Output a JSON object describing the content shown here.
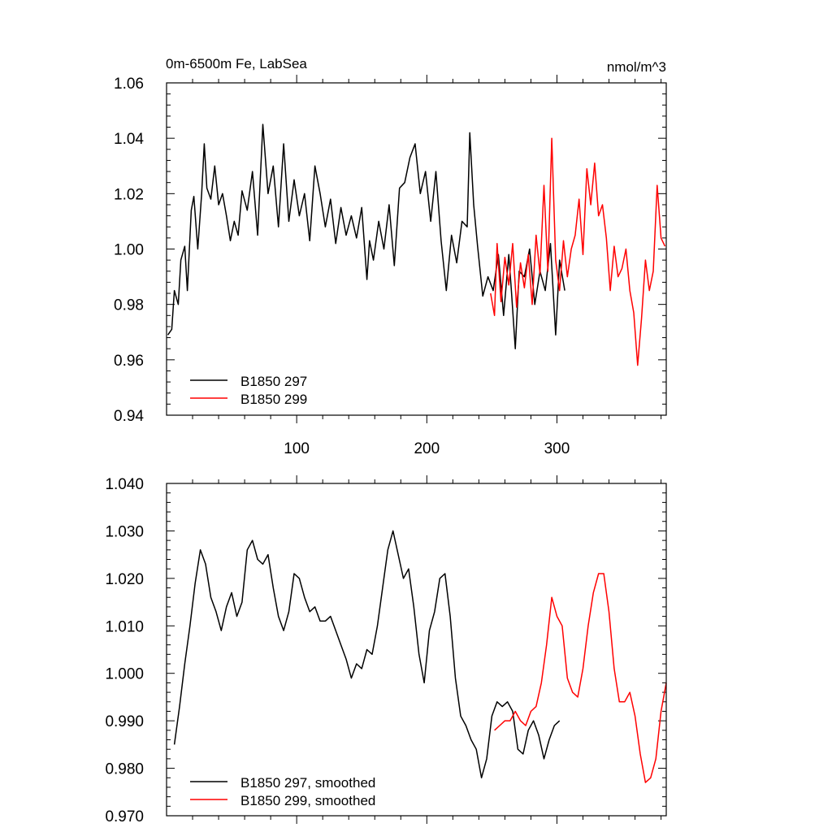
{
  "colors": {
    "series_a": "#000000",
    "series_b": "#ff0000",
    "frame": "#000000"
  },
  "chart_data": [
    {
      "type": "line",
      "title_left": "0m-6500m Fe, LabSea",
      "title_right": "nmol/m^3",
      "xlim": [
        0,
        384
      ],
      "ylim": [
        0.94,
        1.06
      ],
      "x_ticks": [
        100,
        200,
        300
      ],
      "x_tick_labels": [
        "100",
        "200",
        "300"
      ],
      "y_ticks": [
        0.94,
        0.96,
        0.98,
        1.0,
        1.02,
        1.04,
        1.06
      ],
      "y_tick_labels": [
        "0.94",
        "0.96",
        "0.98",
        "1.00",
        "1.02",
        "1.04",
        "1.06"
      ],
      "legend": [
        {
          "label": "B1850 297",
          "color": "#000000"
        },
        {
          "label": "B1850 299",
          "color": "#ff0000"
        }
      ],
      "series": [
        {
          "name": "B1850 297",
          "color": "#000000",
          "x": [
            1,
            4,
            6,
            9,
            11,
            14,
            16,
            19,
            21,
            24,
            27,
            29,
            31,
            34,
            37,
            40,
            43,
            46,
            49,
            52,
            55,
            58,
            62,
            66,
            70,
            74,
            78,
            82,
            86,
            90,
            94,
            98,
            102,
            106,
            110,
            114,
            118,
            122,
            126,
            130,
            134,
            138,
            142,
            146,
            150,
            154,
            156,
            159,
            163,
            167,
            171,
            175,
            179,
            183,
            187,
            191,
            195,
            199,
            203,
            207,
            211,
            215,
            219,
            223,
            227,
            231,
            233,
            236,
            239,
            243,
            247,
            251,
            255,
            259,
            263,
            265,
            268,
            271,
            275,
            279,
            283,
            287,
            291,
            295,
            299,
            302,
            306
          ],
          "values": [
            0.969,
            0.971,
            0.985,
            0.98,
            0.996,
            1.001,
            0.985,
            1.014,
            1.019,
            1.0,
            1.02,
            1.038,
            1.022,
            1.018,
            1.03,
            1.016,
            1.02,
            1.012,
            1.003,
            1.01,
            1.005,
            1.021,
            1.014,
            1.028,
            1.005,
            1.045,
            1.02,
            1.03,
            1.008,
            1.038,
            1.01,
            1.025,
            1.012,
            1.02,
            1.003,
            1.03,
            1.02,
            1.008,
            1.018,
            1.002,
            1.015,
            1.005,
            1.012,
            1.004,
            1.015,
            0.989,
            1.003,
            0.996,
            1.01,
            1.0,
            1.016,
            0.994,
            1.022,
            1.024,
            1.033,
            1.038,
            1.02,
            1.028,
            1.01,
            1.028,
            1.003,
            0.985,
            1.005,
            0.995,
            1.01,
            1.008,
            1.042,
            1.016,
            1.001,
            0.983,
            0.99,
            0.985,
            0.998,
            0.976,
            0.998,
            0.985,
            0.964,
            0.992,
            0.99,
            1.0,
            0.98,
            0.992,
            0.985,
            1.002,
            0.969,
            0.996,
            0.985
          ]
        },
        {
          "name": "B1850 299",
          "color": "#ff0000",
          "x": [
            249,
            252,
            254,
            257,
            260,
            263,
            266,
            269,
            272,
            275,
            278,
            281,
            284,
            287,
            290,
            293,
            296,
            299,
            302,
            305,
            308,
            311,
            314,
            317,
            320,
            323,
            326,
            329,
            332,
            335,
            338,
            341,
            344,
            347,
            350,
            353,
            356,
            359,
            362,
            365,
            368,
            371,
            374,
            377,
            380,
            383
          ],
          "values": [
            0.984,
            0.976,
            1.002,
            0.981,
            0.997,
            0.987,
            1.002,
            0.979,
            0.995,
            0.986,
            0.998,
            0.98,
            1.005,
            0.991,
            1.023,
            0.992,
            1.04,
            0.996,
            0.985,
            1.003,
            0.99,
            1.0,
            1.005,
            1.018,
            0.998,
            1.029,
            1.016,
            1.031,
            1.012,
            1.016,
            1.004,
            0.985,
            1.001,
            0.99,
            0.993,
            1.0,
            0.985,
            0.977,
            0.958,
            0.975,
            0.996,
            0.985,
            0.992,
            1.023,
            1.004,
            1.001
          ]
        }
      ]
    },
    {
      "type": "line",
      "xlim": [
        0,
        384
      ],
      "ylim": [
        0.97,
        1.04
      ],
      "y_ticks": [
        0.97,
        0.98,
        0.99,
        1.0,
        1.01,
        1.02,
        1.03,
        1.04
      ],
      "y_tick_labels": [
        "0.970",
        "0.980",
        "0.990",
        "1.000",
        "1.010",
        "1.020",
        "1.030",
        "1.040"
      ],
      "legend": [
        {
          "label": "B1850 297, smoothed",
          "color": "#000000"
        },
        {
          "label": "B1850 299, smoothed",
          "color": "#ff0000"
        }
      ],
      "series": [
        {
          "name": "B1850 297, smoothed",
          "color": "#000000",
          "x": [
            6,
            10,
            14,
            18,
            22,
            26,
            30,
            34,
            38,
            42,
            46,
            50,
            54,
            58,
            62,
            66,
            70,
            74,
            78,
            82,
            86,
            90,
            94,
            98,
            102,
            106,
            110,
            114,
            118,
            122,
            126,
            130,
            134,
            138,
            142,
            146,
            150,
            154,
            158,
            162,
            166,
            170,
            174,
            178,
            182,
            186,
            190,
            194,
            198,
            202,
            206,
            210,
            214,
            218,
            222,
            226,
            230,
            234,
            238,
            242,
            246,
            250,
            254,
            258,
            262,
            266,
            270,
            274,
            278,
            282,
            286,
            290,
            294,
            298,
            302
          ],
          "values": [
            0.985,
            0.993,
            1.002,
            1.01,
            1.019,
            1.026,
            1.023,
            1.016,
            1.013,
            1.009,
            1.014,
            1.017,
            1.012,
            1.015,
            1.026,
            1.028,
            1.024,
            1.023,
            1.025,
            1.018,
            1.012,
            1.009,
            1.013,
            1.021,
            1.02,
            1.016,
            1.013,
            1.014,
            1.011,
            1.011,
            1.012,
            1.009,
            1.006,
            1.003,
            0.999,
            1.002,
            1.001,
            1.005,
            1.004,
            1.01,
            1.018,
            1.026,
            1.03,
            1.025,
            1.02,
            1.022,
            1.014,
            1.004,
            0.998,
            1.009,
            1.013,
            1.02,
            1.021,
            1.012,
            0.999,
            0.991,
            0.989,
            0.986,
            0.984,
            0.978,
            0.982,
            0.991,
            0.994,
            0.993,
            0.994,
            0.992,
            0.984,
            0.983,
            0.988,
            0.99,
            0.987,
            0.982,
            0.986,
            0.989,
            0.99
          ]
        },
        {
          "name": "B1850 299, smoothed",
          "color": "#ff0000",
          "x": [
            252,
            256,
            260,
            264,
            268,
            272,
            276,
            280,
            284,
            288,
            292,
            296,
            300,
            304,
            308,
            312,
            316,
            320,
            324,
            328,
            332,
            336,
            340,
            344,
            348,
            352,
            356,
            360,
            364,
            368,
            372,
            376,
            380,
            384
          ],
          "values": [
            0.988,
            0.989,
            0.99,
            0.99,
            0.992,
            0.99,
            0.989,
            0.992,
            0.993,
            0.998,
            1.006,
            1.016,
            1.012,
            1.01,
            0.999,
            0.996,
            0.995,
            1.001,
            1.01,
            1.017,
            1.021,
            1.021,
            1.013,
            1.001,
            0.994,
            0.994,
            0.996,
            0.991,
            0.983,
            0.977,
            0.978,
            0.982,
            0.992,
            0.998
          ]
        }
      ]
    }
  ]
}
